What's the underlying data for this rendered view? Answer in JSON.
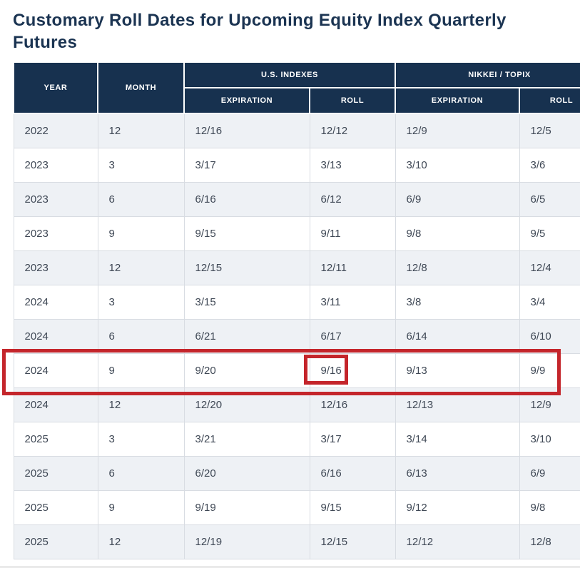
{
  "page": {
    "title": "Customary Roll Dates for Upcoming Equity Index Quarterly Futures"
  },
  "table": {
    "header": {
      "year": "YEAR",
      "month": "MONTH",
      "groups": [
        {
          "label": "U.S. INDEXES"
        },
        {
          "label": "NIKKEI / TOPIX"
        }
      ],
      "sub": [
        "EXPIRATION",
        "ROLL",
        "EXPIRATION",
        "ROLL"
      ]
    },
    "rows": [
      [
        "2022",
        "12",
        "12/16",
        "12/12",
        "12/9",
        "12/5"
      ],
      [
        "2023",
        "3",
        "3/17",
        "3/13",
        "3/10",
        "3/6"
      ],
      [
        "2023",
        "6",
        "6/16",
        "6/12",
        "6/9",
        "6/5"
      ],
      [
        "2023",
        "9",
        "9/15",
        "9/11",
        "9/8",
        "9/5"
      ],
      [
        "2023",
        "12",
        "12/15",
        "12/11",
        "12/8",
        "12/4"
      ],
      [
        "2024",
        "3",
        "3/15",
        "3/11",
        "3/8",
        "3/4"
      ],
      [
        "2024",
        "6",
        "6/21",
        "6/17",
        "6/14",
        "6/10"
      ],
      [
        "2024",
        "9",
        "9/20",
        "9/16",
        "9/13",
        "9/9"
      ],
      [
        "2024",
        "12",
        "12/20",
        "12/16",
        "12/13",
        "12/9"
      ],
      [
        "2025",
        "3",
        "3/21",
        "3/17",
        "3/14",
        "3/10"
      ],
      [
        "2025",
        "6",
        "6/20",
        "6/16",
        "6/13",
        "6/9"
      ],
      [
        "2025",
        "9",
        "9/19",
        "9/15",
        "9/12",
        "9/8"
      ],
      [
        "2025",
        "12",
        "12/19",
        "12/15",
        "12/12",
        "12/8"
      ]
    ],
    "annotations": {
      "highlighted_row": {
        "year": "2024",
        "month": "9"
      },
      "highlighted_cell": {
        "column": "U.S. INDEXES ROLL",
        "value": "9/16"
      }
    }
  },
  "colors": {
    "header_bg": "#17314f",
    "title_text": "#1b3452",
    "body_text": "#3f4855",
    "alt_row_bg": "#eef1f5",
    "cell_border": "#d8dce2",
    "annotation_red": "#c4252b"
  }
}
